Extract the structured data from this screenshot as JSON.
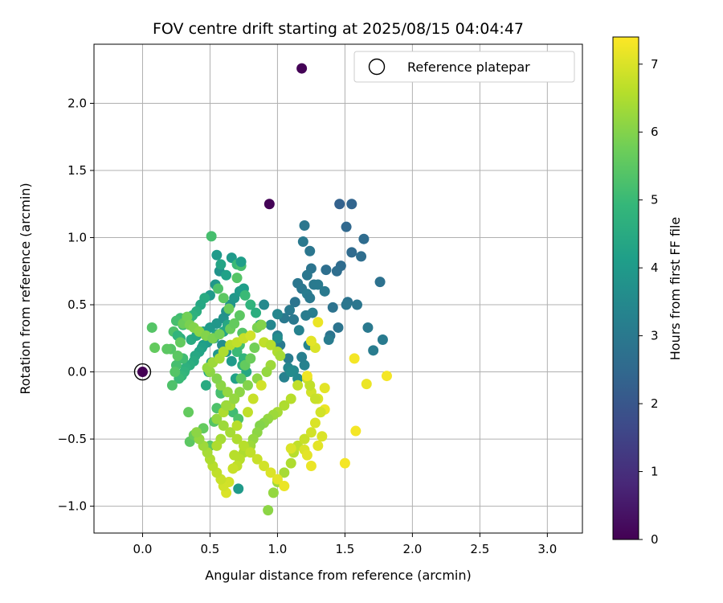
{
  "chart_data": {
    "type": "scatter",
    "title": "FOV centre drift starting at 2025/08/15 04:04:47",
    "xlabel": "Angular distance from reference (arcmin)",
    "ylabel": "Rotation from reference (arcmin)",
    "xlim": [
      -0.36,
      3.26
    ],
    "ylim": [
      -1.2,
      2.44
    ],
    "x_ticks": [
      0.0,
      0.5,
      1.0,
      1.5,
      2.0,
      2.5,
      3.0
    ],
    "x_tick_labels": [
      "0.0",
      "0.5",
      "1.0",
      "1.5",
      "2.0",
      "2.5",
      "3.0"
    ],
    "y_ticks": [
      -1.0,
      -0.5,
      0.0,
      0.5,
      1.0,
      1.5,
      2.0
    ],
    "y_tick_labels": [
      "−1.0",
      "−0.5",
      "0.0",
      "0.5",
      "1.0",
      "1.5",
      "2.0"
    ],
    "grid": true,
    "legend": {
      "position": "top-right",
      "label": "Reference platepar"
    },
    "reference_point": {
      "x": 0.0,
      "y": 0.0,
      "hours": 0.0
    },
    "colorbar": {
      "label": "Hours from first FF file",
      "range": [
        0,
        7.4
      ],
      "ticks": [
        0,
        1,
        2,
        3,
        4,
        5,
        6,
        7
      ],
      "tick_labels": [
        "0",
        "1",
        "2",
        "3",
        "4",
        "5",
        "6",
        "7"
      ],
      "colormap": "viridis",
      "stops": [
        "#440154",
        "#482878",
        "#3e4989",
        "#31688e",
        "#26828e",
        "#1f9e89",
        "#35b779",
        "#6ece58",
        "#b5de2b",
        "#fde725"
      ]
    },
    "series": [
      {
        "x": [
          1.18,
          0.94,
          1.19,
          1.2,
          1.24,
          1.25,
          1.22,
          1.15,
          1.27,
          1.3,
          1.18,
          1.22,
          1.24,
          1.13,
          1.09,
          1.26,
          1.21,
          1.05,
          1.02,
          1.0,
          1.12,
          1.08,
          1.0,
          1.16,
          1.46,
          1.55,
          1.51,
          1.64,
          1.55,
          1.47,
          1.62,
          1.44,
          1.36,
          1.41,
          1.76,
          1.39,
          1.52,
          1.59,
          1.45,
          1.51,
          1.67,
          1.78,
          1.38,
          1.35,
          1.71,
          1.2,
          1.18,
          1.23,
          1.05,
          1.08,
          1.12,
          1.0,
          0.9,
          0.95,
          1.1,
          1.15
        ],
        "y": [
          2.26,
          1.25,
          0.97,
          1.09,
          0.9,
          0.77,
          0.72,
          0.66,
          0.65,
          0.65,
          0.62,
          0.58,
          0.55,
          0.52,
          0.46,
          0.44,
          0.42,
          0.4,
          0.2,
          0.27,
          0.39,
          0.1,
          0.43,
          0.31,
          1.25,
          1.25,
          1.08,
          0.99,
          0.89,
          0.79,
          0.86,
          0.75,
          0.76,
          0.48,
          0.67,
          0.27,
          0.52,
          0.5,
          0.33,
          0.5,
          0.33,
          0.24,
          0.24,
          0.6,
          0.16,
          0.05,
          0.11,
          0.2,
          -0.04,
          0.03,
          0.01,
          0.25,
          0.5,
          0.35,
          0.0,
          -0.05
        ],
        "hours": [
          0.05,
          0.05,
          3.0,
          2.95,
          2.9,
          2.85,
          2.95,
          2.9,
          3.0,
          3.05,
          2.95,
          3.1,
          3.0,
          2.85,
          3.05,
          3.15,
          3.1,
          3.0,
          3.05,
          3.2,
          3.0,
          3.1,
          3.4,
          3.3,
          2.3,
          2.4,
          2.5,
          2.6,
          2.55,
          2.6,
          2.65,
          2.65,
          2.7,
          2.8,
          2.75,
          2.85,
          2.8,
          2.9,
          2.85,
          2.95,
          3.0,
          3.05,
          3.1,
          3.0,
          3.1,
          3.3,
          3.2,
          3.35,
          3.25,
          3.4,
          3.5,
          3.6,
          3.5,
          3.45,
          3.55,
          3.5
        ]
      },
      {
        "x": [
          0.51,
          0.55,
          0.57,
          0.54,
          0.5,
          0.46,
          0.43,
          0.4,
          0.37,
          0.35,
          0.33,
          0.3,
          0.28,
          0.25,
          0.23,
          0.21,
          0.28,
          0.26,
          0.36,
          0.4,
          0.45,
          0.5,
          0.55,
          0.6,
          0.62,
          0.65,
          0.68,
          0.72,
          0.75,
          0.62,
          0.58,
          0.66,
          0.7,
          0.73,
          0.7,
          0.76,
          0.8,
          0.84,
          0.87,
          0.63,
          0.6,
          0.55,
          0.53,
          0.48,
          0.45,
          0.44,
          0.42,
          0.39,
          0.38,
          0.35,
          0.32,
          0.31,
          0.29,
          0.27,
          0.3,
          0.25,
          0.22,
          0.24,
          0.26,
          0.28,
          0.3,
          0.33,
          0.35,
          0.38,
          0.42,
          0.47,
          0.52,
          0.57,
          0.65,
          0.68,
          0.72,
          0.74,
          0.72,
          0.7,
          0.75,
          0.74,
          0.77,
          0.69,
          0.66,
          0.62,
          0.59,
          0.56,
          0.51,
          0.49,
          0.47,
          0.58,
          0.62,
          0.67,
          0.71,
          0.73,
          0.76,
          0.8,
          0.83,
          0.85,
          0.88,
          0.56,
          0.6,
          0.64,
          0.07,
          0.09,
          0.18,
          0.73,
          0.34,
          0.35,
          0.38,
          0.45,
          0.5,
          0.53,
          0.55,
          0.58,
          0.71
        ],
        "y": [
          1.01,
          0.87,
          0.75,
          0.65,
          0.57,
          0.55,
          0.5,
          0.45,
          0.42,
          0.4,
          0.37,
          0.35,
          0.4,
          0.38,
          0.3,
          0.17,
          0.25,
          0.27,
          0.24,
          0.27,
          0.3,
          0.33,
          0.36,
          0.4,
          0.45,
          0.5,
          0.55,
          0.6,
          0.62,
          0.72,
          0.8,
          0.85,
          0.8,
          0.79,
          0.7,
          0.57,
          0.5,
          0.44,
          0.35,
          0.35,
          0.3,
          0.28,
          0.25,
          0.22,
          0.2,
          0.18,
          0.15,
          0.12,
          0.08,
          0.05,
          0.03,
          0.0,
          -0.03,
          -0.05,
          0.1,
          0.05,
          -0.1,
          0.0,
          0.12,
          0.22,
          0.36,
          0.41,
          0.35,
          0.33,
          0.3,
          0.27,
          0.25,
          0.28,
          0.32,
          0.36,
          0.42,
          0.29,
          0.2,
          0.15,
          0.1,
          0.05,
          0.0,
          -0.05,
          0.08,
          0.15,
          0.2,
          0.13,
          0.07,
          0.0,
          -0.1,
          -0.15,
          -0.25,
          -0.3,
          -0.35,
          -0.05,
          0.05,
          0.1,
          0.18,
          0.33,
          0.35,
          0.62,
          0.55,
          0.47,
          0.33,
          0.18,
          0.17,
          0.82,
          -0.3,
          -0.52,
          -0.47,
          -0.42,
          -0.55,
          -0.37,
          -0.27,
          -0.16,
          -0.87
        ],
        "hours": [
          5.2,
          4.0,
          3.8,
          3.9,
          4.0,
          4.5,
          4.4,
          4.6,
          4.7,
          4.8,
          4.9,
          5.0,
          5.1,
          5.2,
          5.3,
          5.4,
          4.6,
          4.8,
          4.5,
          4.4,
          4.2,
          4.0,
          3.9,
          3.8,
          3.7,
          3.8,
          3.9,
          4.0,
          4.1,
          4.2,
          4.3,
          4.0,
          5.0,
          5.2,
          5.4,
          5.0,
          4.8,
          4.6,
          4.5,
          4.4,
          4.3,
          4.2,
          4.1,
          4.0,
          4.1,
          4.2,
          4.3,
          4.4,
          4.5,
          4.6,
          4.7,
          4.8,
          4.9,
          5.0,
          5.1,
          5.2,
          5.3,
          5.4,
          5.5,
          5.6,
          5.7,
          5.8,
          5.9,
          6.0,
          6.1,
          6.0,
          5.9,
          5.8,
          5.7,
          5.6,
          5.5,
          5.4,
          5.2,
          5.0,
          4.8,
          4.6,
          4.4,
          4.2,
          4.0,
          3.8,
          3.6,
          3.9,
          4.1,
          4.3,
          4.5,
          4.7,
          4.9,
          5.1,
          5.3,
          5.5,
          5.6,
          5.7,
          5.8,
          5.9,
          6.0,
          5.3,
          5.5,
          5.7,
          5.4,
          5.6,
          5.5,
          4.1,
          5.6,
          5.5,
          5.7,
          5.6,
          5.5,
          5.4,
          5.3,
          5.2,
          4.0
        ]
      },
      {
        "x": [
          0.93,
          0.97,
          1.0,
          1.05,
          1.1,
          1.12,
          1.15,
          1.2,
          1.25,
          1.28,
          1.32,
          1.35,
          1.3,
          1.25,
          1.22,
          1.15,
          1.1,
          1.05,
          1.0,
          0.97,
          0.93,
          0.9,
          0.87,
          0.85,
          0.82,
          0.8,
          0.77,
          0.75,
          0.72,
          0.7,
          0.67,
          0.64,
          0.62,
          0.6,
          0.58,
          0.55,
          0.52,
          0.5,
          0.48,
          0.45,
          0.42,
          0.4,
          0.55,
          0.6,
          0.65,
          0.7,
          0.75,
          0.8,
          0.85,
          0.9,
          0.95,
          1.0,
          1.05,
          1.1,
          0.6,
          0.65,
          0.68,
          0.63,
          0.58,
          0.55,
          0.5,
          0.48,
          0.52,
          0.57,
          0.6,
          0.65,
          0.7,
          0.75,
          0.8,
          0.9,
          0.95,
          1.0,
          1.02,
          0.95,
          0.92,
          0.85,
          0.78,
          0.72,
          0.68,
          0.62,
          0.58,
          0.55,
          0.7,
          0.78,
          0.82,
          0.88,
          1.2,
          1.22,
          1.25,
          1.3,
          1.33,
          1.32,
          1.28,
          1.24,
          0.68
        ],
        "y": [
          -1.03,
          -0.9,
          -0.82,
          -0.75,
          -0.68,
          -0.6,
          -0.55,
          -0.5,
          -0.45,
          -0.38,
          -0.3,
          -0.28,
          -0.2,
          -0.15,
          -0.05,
          -0.1,
          -0.2,
          -0.25,
          -0.3,
          -0.32,
          -0.35,
          -0.38,
          -0.4,
          -0.45,
          -0.5,
          -0.55,
          -0.58,
          -0.6,
          -0.65,
          -0.7,
          -0.72,
          -0.82,
          -0.9,
          -0.85,
          -0.8,
          -0.75,
          -0.7,
          -0.65,
          -0.6,
          -0.55,
          -0.5,
          -0.45,
          -0.35,
          -0.4,
          -0.45,
          -0.5,
          -0.55,
          -0.6,
          -0.65,
          -0.7,
          -0.75,
          -0.8,
          -0.85,
          -0.57,
          -0.3,
          -0.25,
          -0.2,
          -0.15,
          -0.1,
          -0.05,
          0.0,
          0.03,
          0.07,
          0.1,
          0.15,
          0.2,
          0.22,
          0.25,
          0.27,
          0.22,
          0.2,
          0.15,
          0.12,
          0.05,
          0.0,
          -0.05,
          -0.1,
          -0.15,
          -0.2,
          -0.25,
          -0.5,
          -0.55,
          -0.4,
          -0.3,
          -0.2,
          -0.1,
          -0.58,
          -0.62,
          -0.7,
          -0.55,
          -0.48,
          -0.3,
          -0.2,
          -0.1,
          -0.62
        ],
        "hours": [
          6.1,
          6.2,
          6.3,
          6.4,
          6.5,
          6.6,
          6.7,
          6.8,
          6.9,
          7.0,
          7.1,
          7.2,
          7.0,
          6.9,
          6.8,
          6.7,
          6.6,
          6.5,
          6.4,
          6.3,
          6.2,
          6.1,
          6.0,
          6.1,
          6.2,
          6.3,
          6.4,
          6.5,
          6.6,
          6.7,
          6.8,
          6.9,
          7.0,
          6.9,
          6.8,
          6.7,
          6.6,
          6.5,
          6.4,
          6.3,
          6.2,
          6.1,
          6.2,
          6.3,
          6.4,
          6.5,
          6.6,
          6.7,
          6.8,
          6.9,
          7.0,
          7.1,
          7.2,
          7.0,
          6.5,
          6.4,
          6.3,
          6.2,
          6.1,
          6.0,
          6.1,
          6.2,
          6.3,
          6.4,
          6.5,
          6.6,
          6.7,
          6.8,
          6.9,
          6.7,
          6.6,
          6.5,
          6.4,
          6.3,
          6.2,
          6.1,
          6.0,
          6.1,
          6.2,
          6.3,
          6.4,
          6.5,
          6.6,
          6.7,
          6.8,
          6.9,
          7.0,
          7.1,
          7.2,
          7.1,
          7.0,
          6.9,
          6.8,
          6.7,
          6.6
        ]
      },
      {
        "x": [
          1.5,
          1.57,
          1.66,
          1.81,
          1.58,
          1.35,
          1.3,
          1.28,
          1.25,
          1.22
        ],
        "y": [
          -0.68,
          0.1,
          -0.09,
          -0.03,
          -0.44,
          -0.12,
          0.37,
          0.18,
          0.23,
          -0.03
        ],
        "hours": [
          7.3,
          7.3,
          7.2,
          7.3,
          7.3,
          7.1,
          7.2,
          7.0,
          7.1,
          7.25
        ]
      }
    ]
  }
}
